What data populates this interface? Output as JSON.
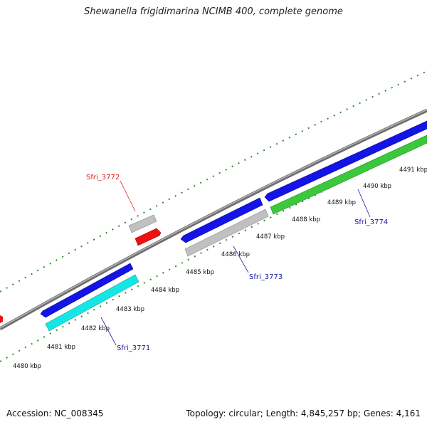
{
  "title": "Shewanella frigidimarina NCIMB 400, complete genome",
  "footer": {
    "accession": "Accession: NC_008345",
    "topology": "Topology: circular; Length: 4,845,257 bp; Genes: 4,161"
  },
  "colors": {
    "backbone": "#8c8c8c",
    "tick_major": "#1a7a1a",
    "tick_minor": "#2e8b2e",
    "gene_blue": "#1414e6",
    "gene_cyan": "#14e6e6",
    "gene_green": "#3cc83c",
    "gene_gray": "#c0c0c0",
    "gene_red": "#ee1111",
    "label_blue": "#1a1aa0",
    "label_red": "#dd2222"
  },
  "ticks": [
    {
      "label": "4480 kbp"
    },
    {
      "label": "4481 kbp"
    },
    {
      "label": "4482 kbp"
    },
    {
      "label": "4483 kbp"
    },
    {
      "label": "4484 kbp"
    },
    {
      "label": "4485 kbp"
    },
    {
      "label": "4486 kbp"
    },
    {
      "label": "4487 kbp"
    },
    {
      "label": "4488 kbp"
    },
    {
      "label": "4489 kbp"
    },
    {
      "label": "4490 kbp"
    },
    {
      "label": "4491 kbp"
    }
  ],
  "gene_labels": [
    {
      "name": "Sfri_3771",
      "color": "label_blue"
    },
    {
      "name": "Sfri_3772",
      "color": "label_red"
    },
    {
      "name": "Sfri_3773",
      "color": "label_blue"
    },
    {
      "name": "Sfri_3774",
      "color": "label_blue"
    }
  ]
}
